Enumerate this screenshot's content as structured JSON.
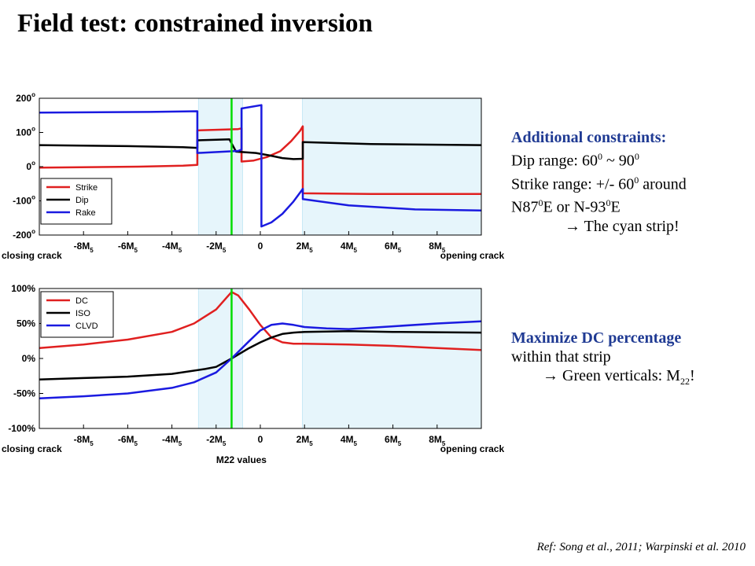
{
  "slide": {
    "title": "Field test: constrained inversion",
    "reference": "Ref: Song et al., 2011; Warpinski et al. 2010"
  },
  "side_text": {
    "constraints_heading": "Additional constraints:",
    "dip_prefix": "Dip range: 60",
    "dip_sup1": "0",
    "dip_mid": " ~ 90",
    "dip_sup2": "0",
    "strike_prefix": "Strike range: +/- 60",
    "strike_sup": "0",
    "strike_suffix": " around",
    "n87_prefix": "N87",
    "n87_sup": "0",
    "n87_mid": "E or N-93",
    "n87_sup2": "0",
    "n87_suffix": "E",
    "arrow1": "→",
    "cyan_note": "The cyan strip!",
    "maximize_heading": "Maximize DC percentage",
    "within": "within that strip",
    "arrow2": "→",
    "green_prefix": "Green verticals: M",
    "green_sub": "22",
    "green_suffix": "!"
  },
  "colors": {
    "strip": "#e6f5fb",
    "green": "#00dd00",
    "red": "#e02020",
    "black": "#000000",
    "blue": "#1a1ae0"
  },
  "chart_data": [
    {
      "type": "line",
      "xlim": [
        -10,
        10
      ],
      "ylim": [
        -200,
        200
      ],
      "x_ticks": [
        -8,
        -6,
        -4,
        -2,
        0,
        2,
        4,
        6,
        8
      ],
      "x_tick_labels": [
        "-8M",
        "-6M",
        "-4M",
        "-2M",
        "0",
        "2M",
        "4M",
        "6M",
        "8M"
      ],
      "x_tick_sub": "5",
      "y_ticks": [
        200,
        100,
        0,
        -100,
        -200
      ],
      "y_tick_labels": [
        "200",
        "100",
        "0",
        "-100",
        "-200"
      ],
      "y_tick_suffix": "o",
      "left_label": "closing crack",
      "right_label": "opening crack",
      "shaded_strips": [
        [
          -2.8,
          -0.8
        ],
        [
          1.9,
          10
        ]
      ],
      "green_line_x": -1.3,
      "legend_placement": "bottom-left",
      "series": [
        {
          "name": "Strike",
          "color": "#e02020",
          "points": [
            [
              -10,
              -3
            ],
            [
              -5.5,
              0
            ],
            [
              -3.5,
              3
            ],
            [
              -2.85,
              5
            ],
            [
              -2.85,
              106
            ],
            [
              -1,
              110
            ],
            [
              -0.85,
              112
            ],
            [
              -0.85,
              15
            ],
            [
              -0.3,
              18
            ],
            [
              0.3,
              28
            ],
            [
              0.9,
              45
            ],
            [
              1.4,
              75
            ],
            [
              1.8,
              105
            ],
            [
              1.92,
              118
            ],
            [
              1.92,
              -78
            ],
            [
              5,
              -80
            ],
            [
              10,
              -80
            ]
          ]
        },
        {
          "name": "Dip",
          "color": "#000000",
          "points": [
            [
              -10,
              63
            ],
            [
              -6,
              60
            ],
            [
              -3.5,
              57
            ],
            [
              -2.85,
              55
            ],
            [
              -2.85,
              77
            ],
            [
              -1.4,
              80
            ],
            [
              -1.1,
              44
            ],
            [
              -0.2,
              40
            ],
            [
              0.4,
              33
            ],
            [
              1,
              25
            ],
            [
              1.5,
              22
            ],
            [
              1.92,
              23
            ],
            [
              1.92,
              72
            ],
            [
              5,
              66
            ],
            [
              10,
              63
            ]
          ]
        },
        {
          "name": "Rake",
          "color": "#1a1ae0",
          "points": [
            [
              -10,
              158
            ],
            [
              -5,
              160
            ],
            [
              -2.85,
              162
            ],
            [
              -2.85,
              40
            ],
            [
              -1,
              46
            ],
            [
              -0.85,
              50
            ],
            [
              -0.85,
              170
            ],
            [
              0.05,
              180
            ],
            [
              0.05,
              -175
            ],
            [
              0.5,
              -163
            ],
            [
              1,
              -138
            ],
            [
              1.5,
              -102
            ],
            [
              1.92,
              -65
            ],
            [
              1.92,
              -95
            ],
            [
              4,
              -113
            ],
            [
              7,
              -125
            ],
            [
              10,
              -128
            ]
          ]
        }
      ]
    },
    {
      "type": "line",
      "xlim": [
        -10,
        10
      ],
      "ylim": [
        -100,
        100
      ],
      "x_ticks": [
        -8,
        -6,
        -4,
        -2,
        0,
        2,
        4,
        6,
        8
      ],
      "x_tick_labels": [
        "-8M",
        "-6M",
        "-4M",
        "-2M",
        "0",
        "2M",
        "4M",
        "6M",
        "8M"
      ],
      "x_tick_sub": "5",
      "y_ticks": [
        100,
        50,
        0,
        -50,
        -100
      ],
      "y_tick_labels": [
        "100%",
        "50%",
        "0%",
        "-50%",
        "-100%"
      ],
      "xlabel": "M22 values",
      "left_label": "closing crack",
      "right_label": "opening crack",
      "shaded_strips": [
        [
          -2.8,
          -0.8
        ],
        [
          1.9,
          10
        ]
      ],
      "green_line_x": -1.3,
      "legend_placement": "top-left",
      "series": [
        {
          "name": "DC",
          "color": "#e02020",
          "points": [
            [
              -10,
              15
            ],
            [
              -8,
              20
            ],
            [
              -6,
              27
            ],
            [
              -4,
              38
            ],
            [
              -3,
              50
            ],
            [
              -2,
              70
            ],
            [
              -1.5,
              88
            ],
            [
              -1.3,
              95
            ],
            [
              -1,
              90
            ],
            [
              -0.5,
              70
            ],
            [
              0,
              48
            ],
            [
              0.5,
              30
            ],
            [
              1,
              23
            ],
            [
              1.5,
              21
            ],
            [
              2,
              21
            ],
            [
              4,
              20
            ],
            [
              6,
              18
            ],
            [
              8,
              15
            ],
            [
              10,
              12
            ]
          ]
        },
        {
          "name": "ISO",
          "color": "#000000",
          "points": [
            [
              -10,
              -30
            ],
            [
              -8,
              -28
            ],
            [
              -6,
              -26
            ],
            [
              -4,
              -22
            ],
            [
              -2.5,
              -15
            ],
            [
              -2,
              -12
            ],
            [
              -1.3,
              0
            ],
            [
              -0.5,
              15
            ],
            [
              0,
              23
            ],
            [
              0.5,
              30
            ],
            [
              1,
              35
            ],
            [
              1.5,
              37
            ],
            [
              2,
              38
            ],
            [
              4,
              39
            ],
            [
              6,
              38
            ],
            [
              10,
              37
            ]
          ]
        },
        {
          "name": "CLVD",
          "color": "#1a1ae0",
          "points": [
            [
              -10,
              -57
            ],
            [
              -8,
              -54
            ],
            [
              -6,
              -50
            ],
            [
              -4,
              -42
            ],
            [
              -3,
              -34
            ],
            [
              -2,
              -20
            ],
            [
              -1.3,
              0
            ],
            [
              -0.5,
              25
            ],
            [
              0,
              40
            ],
            [
              0.5,
              48
            ],
            [
              1,
              50
            ],
            [
              1.5,
              48
            ],
            [
              2,
              45
            ],
            [
              3,
              43
            ],
            [
              4,
              42
            ],
            [
              6,
              46
            ],
            [
              8,
              50
            ],
            [
              10,
              53
            ]
          ]
        }
      ]
    }
  ]
}
